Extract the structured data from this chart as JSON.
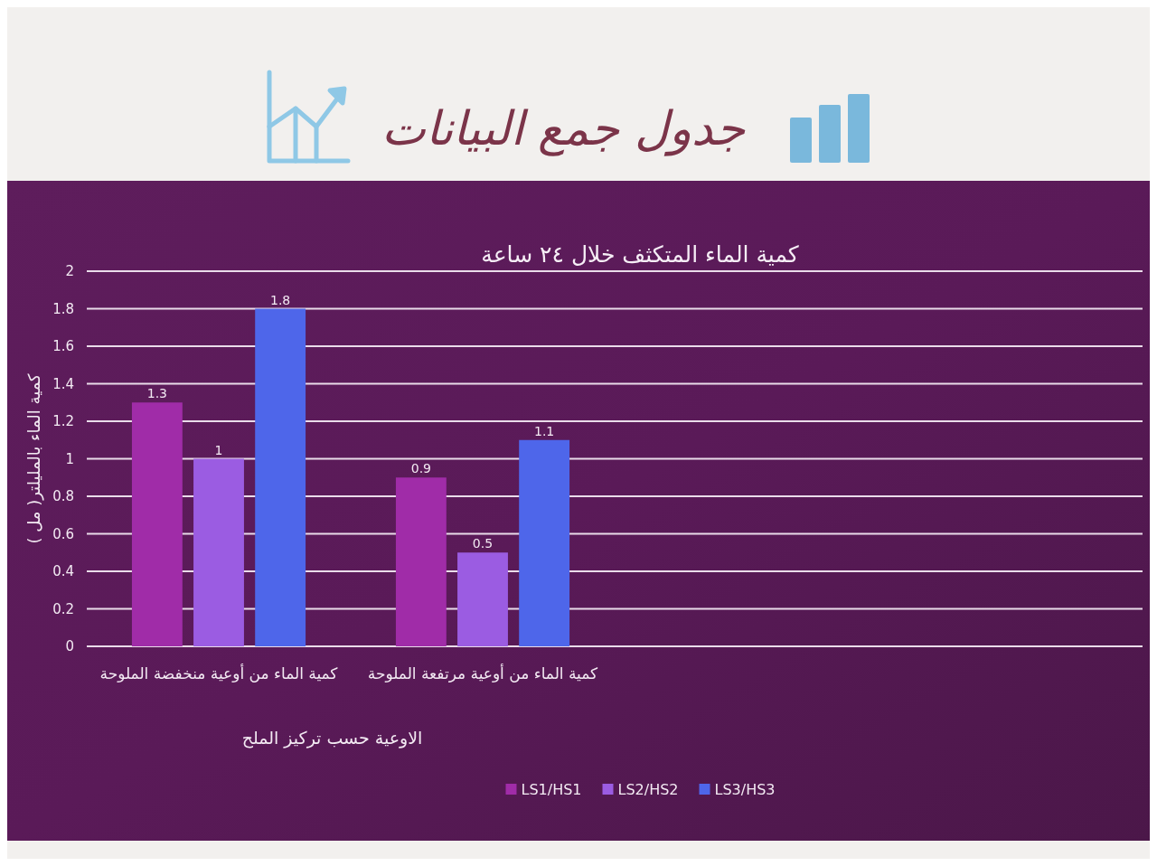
{
  "chart_data": {
    "type": "bar",
    "title": "جدول جمع البيانات",
    "subtitle": "كمية الماء المتكثف خلال ٢٤ ساعة",
    "xlabel": "الاوعية حسب تركيز الملح",
    "ylabel": "كمية الماء بالمليلتر( مل )",
    "categories": [
      "كمية الماء من أوعية منخفضة الملوحة",
      "كمية الماء من أوعية مرتفعة الملوحة",
      null,
      null
    ],
    "series": [
      {
        "name": "LS1/HS1",
        "color": "#a02ca8",
        "values": [
          1.3,
          0.9,
          null,
          null
        ]
      },
      {
        "name": "LS2/HS2",
        "color": "#9b5ce2",
        "values": [
          1,
          0.5,
          null,
          null
        ]
      },
      {
        "name": "LS3/HS3",
        "color": "#4e66ea",
        "values": [
          1.8,
          1.1,
          null,
          null
        ]
      }
    ],
    "ylim": [
      0,
      2
    ],
    "yticks": [
      0,
      0.2,
      0.4,
      0.6,
      0.8,
      1,
      1.2,
      1.4,
      1.6,
      1.8,
      2
    ],
    "grid": "y",
    "legend": "bottom",
    "data_labels": true
  }
}
